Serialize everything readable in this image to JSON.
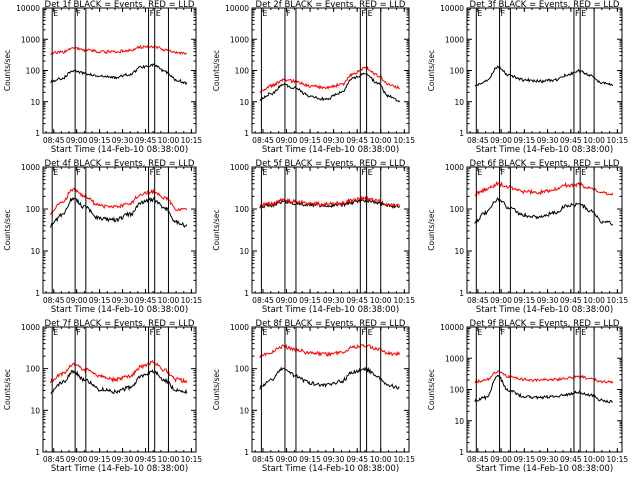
{
  "figure": {
    "time_axis_label": "Start Time (14-Feb-10 08:38:00)",
    "y_axis_label": "Counts/sec",
    "x_tick_labels": [
      "08:45",
      "09:00",
      "09:15",
      "09:30",
      "09:45",
      "10:00",
      "10:15"
    ],
    "marker_letters": [
      "E",
      "F",
      "F",
      "E"
    ]
  },
  "colors": {
    "events": "#000000",
    "lld": "#ff0000",
    "axes": "#000000",
    "background": "#ffffff"
  },
  "chart_data": [
    {
      "type": "line",
      "title": "Det 1f BLACK = Events, RED = LLD",
      "ylabel": "Counts/sec",
      "xlabel": "Start Time (14-Feb-10 08:38:00)",
      "ylim": [
        1,
        10000
      ],
      "yscale": "log",
      "yticks": [
        "1",
        "10",
        "100",
        "1000",
        "10000"
      ],
      "xlim": [
        "08:38",
        "10:18"
      ],
      "x": [
        "08:43",
        "08:50",
        "08:58",
        "09:05",
        "09:15",
        "09:25",
        "09:35",
        "09:42",
        "09:50",
        "09:58",
        "10:05",
        "10:12"
      ],
      "series": [
        {
          "name": "Events",
          "values": [
            45,
            55,
            100,
            80,
            65,
            60,
            75,
            130,
            150,
            90,
            50,
            40
          ]
        },
        {
          "name": "LLD",
          "values": [
            360,
            380,
            520,
            450,
            400,
            390,
            440,
            560,
            560,
            460,
            380,
            360
          ]
        }
      ],
      "vlines": [
        "08:44",
        "08:59",
        "09:06",
        "09:47",
        "09:51",
        "10:00"
      ]
    },
    {
      "type": "line",
      "title": "Det 2f BLACK = Events, RED = LLD",
      "ylabel": "Counts/sec",
      "xlabel": "Start Time (14-Feb-10 08:38:00)",
      "ylim": [
        1,
        10000
      ],
      "yscale": "log",
      "yticks": [
        "1",
        "10",
        "100",
        "1000",
        "10000"
      ],
      "xlim": [
        "08:38",
        "10:18"
      ],
      "x": [
        "08:43",
        "08:50",
        "08:58",
        "09:05",
        "09:15",
        "09:25",
        "09:35",
        "09:42",
        "09:50",
        "09:58",
        "10:05",
        "10:12"
      ],
      "series": [
        {
          "name": "Events",
          "values": [
            12,
            18,
            35,
            28,
            15,
            12,
            20,
            55,
            80,
            40,
            15,
            10
          ]
        },
        {
          "name": "LLD",
          "values": [
            22,
            32,
            50,
            45,
            32,
            28,
            35,
            75,
            120,
            70,
            35,
            28
          ]
        }
      ],
      "vlines": [
        "08:44",
        "08:59",
        "09:06",
        "09:47",
        "09:51",
        "10:00"
      ]
    },
    {
      "type": "line",
      "title": "Det 3f BLACK = Events, RED = LLD",
      "ylabel": "Counts/sec",
      "xlabel": "Start Time (14-Feb-10 08:38:00)",
      "ylim": [
        1,
        10000
      ],
      "yscale": "log",
      "yticks": [
        "1",
        "10",
        "100",
        "1000",
        "10000"
      ],
      "xlim": [
        "08:38",
        "10:18"
      ],
      "x": [
        "08:43",
        "08:50",
        "08:58",
        "09:05",
        "09:15",
        "09:25",
        "09:35",
        "09:42",
        "09:50",
        "09:58",
        "10:05",
        "10:12"
      ],
      "series": [
        {
          "name": "Events",
          "values": [
            35,
            45,
            130,
            70,
            50,
            45,
            50,
            70,
            95,
            70,
            40,
            35
          ]
        }
      ],
      "vlines": [
        "08:44",
        "08:59",
        "09:06",
        "09:47",
        "09:51",
        "10:00"
      ]
    },
    {
      "type": "line",
      "title": "Det 4f BLACK = Events, RED = LLD",
      "ylabel": "Counts/sec",
      "xlabel": "Start Time (14-Feb-10 08:38:00)",
      "ylim": [
        1,
        1000
      ],
      "yscale": "log",
      "yticks": [
        "1",
        "10",
        "100",
        "1000"
      ],
      "xlim": [
        "08:38",
        "10:18"
      ],
      "x": [
        "08:43",
        "08:50",
        "08:58",
        "09:05",
        "09:15",
        "09:25",
        "09:35",
        "09:42",
        "09:50",
        "09:58",
        "10:05",
        "10:12"
      ],
      "series": [
        {
          "name": "Events",
          "values": [
            40,
            70,
            180,
            110,
            60,
            55,
            75,
            140,
            170,
            100,
            50,
            40
          ]
        },
        {
          "name": "LLD",
          "values": [
            80,
            140,
            300,
            200,
            120,
            110,
            140,
            230,
            260,
            180,
            100,
            95
          ]
        }
      ],
      "vlines": [
        "08:44",
        "08:59",
        "09:06",
        "09:47",
        "09:51",
        "10:00"
      ]
    },
    {
      "type": "line",
      "title": "Det 5f BLACK = Events, RED = LLD",
      "ylabel": "Counts/sec",
      "xlabel": "Start Time (14-Feb-10 08:38:00)",
      "ylim": [
        1,
        1000
      ],
      "yscale": "log",
      "yticks": [
        "1",
        "10",
        "100",
        "1000"
      ],
      "xlim": [
        "08:38",
        "10:18"
      ],
      "x": [
        "08:43",
        "08:50",
        "08:58",
        "09:05",
        "09:15",
        "09:25",
        "09:35",
        "09:42",
        "09:50",
        "09:58",
        "10:05",
        "10:12"
      ],
      "series": [
        {
          "name": "Events",
          "values": [
            115,
            125,
            150,
            140,
            125,
            120,
            125,
            145,
            160,
            140,
            120,
            115
          ]
        },
        {
          "name": "LLD",
          "values": [
            125,
            135,
            160,
            150,
            135,
            130,
            135,
            160,
            180,
            155,
            130,
            125
          ]
        }
      ],
      "vlines": [
        "08:44",
        "08:59",
        "09:06",
        "09:47",
        "09:51",
        "10:00"
      ]
    },
    {
      "type": "line",
      "title": "Det 6f BLACK = Events, RED = LLD",
      "ylabel": "Counts/sec",
      "xlabel": "Start Time (14-Feb-10 08:38:00)",
      "ylim": [
        1,
        1000
      ],
      "yscale": "log",
      "yticks": [
        "1",
        "10",
        "100",
        "1000"
      ],
      "xlim": [
        "08:38",
        "10:18"
      ],
      "x": [
        "08:43",
        "08:50",
        "08:58",
        "09:05",
        "09:15",
        "09:25",
        "09:35",
        "09:42",
        "09:50",
        "09:58",
        "10:05",
        "10:12"
      ],
      "series": [
        {
          "name": "Events",
          "values": [
            50,
            80,
            170,
            110,
            70,
            65,
            80,
            120,
            130,
            90,
            50,
            45
          ]
        },
        {
          "name": "LLD",
          "values": [
            230,
            280,
            400,
            330,
            260,
            250,
            290,
            370,
            380,
            310,
            240,
            220
          ]
        }
      ],
      "vlines": [
        "08:44",
        "08:59",
        "09:06",
        "09:47",
        "09:51",
        "10:00"
      ]
    },
    {
      "type": "line",
      "title": "Det 7f BLACK = Events, RED = LLD",
      "ylabel": "Counts/sec",
      "xlabel": "Start Time (14-Feb-10 08:38:00)",
      "ylim": [
        1,
        1000
      ],
      "yscale": "log",
      "yticks": [
        "1",
        "10",
        "100",
        "1000"
      ],
      "xlim": [
        "08:38",
        "10:18"
      ],
      "x": [
        "08:43",
        "08:50",
        "08:58",
        "09:05",
        "09:15",
        "09:25",
        "09:35",
        "09:42",
        "09:50",
        "09:58",
        "10:05",
        "10:12"
      ],
      "series": [
        {
          "name": "Events",
          "values": [
            28,
            45,
            85,
            55,
            32,
            28,
            35,
            65,
            85,
            50,
            30,
            28
          ]
        },
        {
          "name": "LLD",
          "values": [
            50,
            75,
            130,
            95,
            65,
            55,
            65,
            110,
            140,
            90,
            55,
            50
          ]
        }
      ],
      "vlines": [
        "08:44",
        "08:59",
        "09:06",
        "09:47",
        "09:51",
        "10:00"
      ]
    },
    {
      "type": "line",
      "title": "Det 8f BLACK = Events, RED = LLD",
      "ylabel": "Counts/sec",
      "xlabel": "Start Time (14-Feb-10 08:38:00)",
      "ylim": [
        1,
        1000
      ],
      "yscale": "log",
      "yticks": [
        "1",
        "10",
        "100",
        "1000"
      ],
      "xlim": [
        "08:38",
        "10:18"
      ],
      "x": [
        "08:43",
        "08:50",
        "08:58",
        "09:05",
        "09:15",
        "09:25",
        "09:35",
        "09:42",
        "09:50",
        "09:58",
        "10:05",
        "10:12"
      ],
      "series": [
        {
          "name": "Events",
          "values": [
            35,
            55,
            100,
            70,
            45,
            40,
            50,
            80,
            100,
            65,
            40,
            35
          ]
        },
        {
          "name": "LLD",
          "values": [
            200,
            250,
            340,
            290,
            240,
            220,
            250,
            320,
            360,
            290,
            230,
            220
          ]
        }
      ],
      "vlines": [
        "08:44",
        "08:59",
        "09:06",
        "09:47",
        "09:51",
        "10:00"
      ]
    },
    {
      "type": "line",
      "title": "Det 9f BLACK = Events, RED = LLD",
      "ylabel": "Counts/sec",
      "xlabel": "Start Time (14-Feb-10 08:38:00)",
      "ylim": [
        1,
        10000
      ],
      "yscale": "log",
      "yticks": [
        "1",
        "10",
        "100",
        "1000",
        "10000"
      ],
      "xlim": [
        "08:38",
        "10:18"
      ],
      "x": [
        "08:43",
        "08:50",
        "08:58",
        "09:05",
        "09:15",
        "09:25",
        "09:35",
        "09:42",
        "09:50",
        "09:58",
        "10:05",
        "10:12"
      ],
      "series": [
        {
          "name": "Events",
          "values": [
            45,
            55,
            260,
            90,
            60,
            55,
            60,
            70,
            80,
            65,
            45,
            40
          ]
        },
        {
          "name": "LLD",
          "values": [
            180,
            200,
            380,
            260,
            210,
            200,
            210,
            230,
            260,
            220,
            180,
            170
          ]
        }
      ],
      "vlines": [
        "08:44",
        "08:59",
        "09:06",
        "09:47",
        "09:51",
        "10:00"
      ]
    }
  ]
}
